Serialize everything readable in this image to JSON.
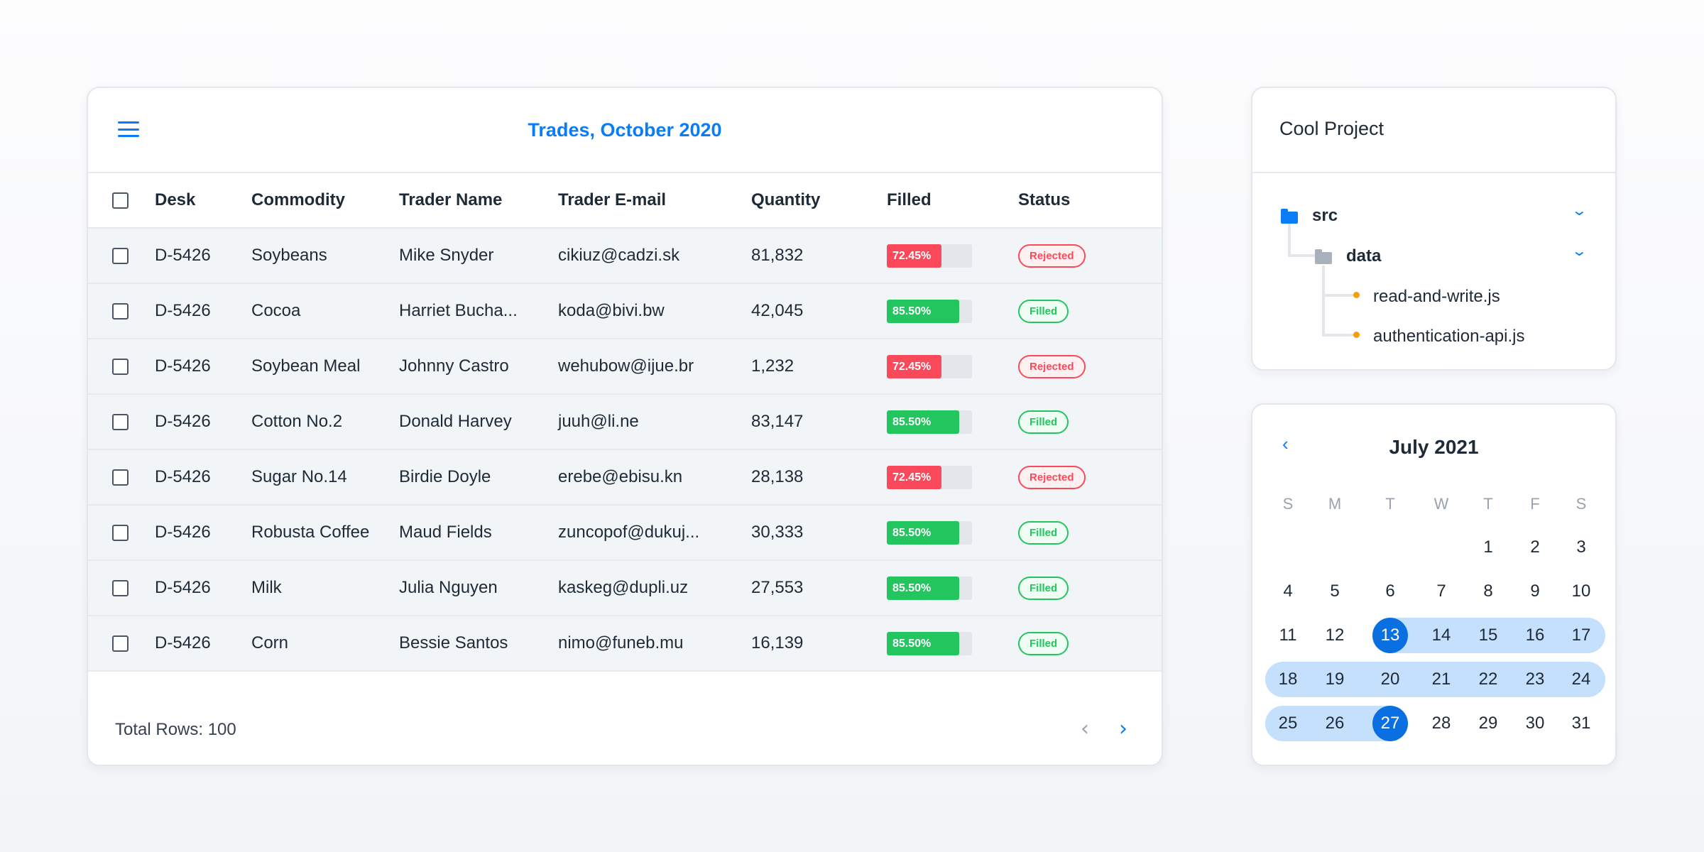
{
  "colors": {
    "accent": "#0a7cf5",
    "rejected": "#f9495b",
    "filled": "#22c55e",
    "range": "#c4e0fd",
    "selected": "#0a6fe0",
    "file_dot": "#f59e0b"
  },
  "trades": {
    "title": "Trades, October 2020",
    "columns": [
      "Desk",
      "Commodity",
      "Trader Name",
      "Trader E-mail",
      "Quantity",
      "Filled",
      "Status"
    ],
    "rows": [
      {
        "desk": "D-5426",
        "commodity": "Soybeans",
        "trader": "Mike Snyder",
        "email": "cikiuz@cadzi.sk",
        "quantity": "81,832",
        "filled": 72.45,
        "filled_label": "72.45%",
        "status": "Rejected"
      },
      {
        "desk": "D-5426",
        "commodity": "Cocoa",
        "trader": "Harriet Bucha...",
        "email": "koda@bivi.bw",
        "quantity": "42,045",
        "filled": 85.5,
        "filled_label": "85.50%",
        "status": "Filled"
      },
      {
        "desk": "D-5426",
        "commodity": "Soybean Meal",
        "trader": "Johnny Castro",
        "email": "wehubow@ijue.br",
        "quantity": "1,232",
        "filled": 72.45,
        "filled_label": "72.45%",
        "status": "Rejected"
      },
      {
        "desk": "D-5426",
        "commodity": "Cotton No.2",
        "trader": "Donald Harvey",
        "email": "juuh@li.ne",
        "quantity": "83,147",
        "filled": 85.5,
        "filled_label": "85.50%",
        "status": "Filled"
      },
      {
        "desk": "D-5426",
        "commodity": "Sugar No.14",
        "trader": "Birdie Doyle",
        "email": "erebe@ebisu.kn",
        "quantity": "28,138",
        "filled": 72.45,
        "filled_label": "72.45%",
        "status": "Rejected"
      },
      {
        "desk": "D-5426",
        "commodity": "Robusta Coffee",
        "trader": "Maud Fields",
        "email": "zuncopof@dukuj...",
        "quantity": "30,333",
        "filled": 85.5,
        "filled_label": "85.50%",
        "status": "Filled"
      },
      {
        "desk": "D-5426",
        "commodity": "Milk",
        "trader": "Julia Nguyen",
        "email": "kaskeg@dupli.uz",
        "quantity": "27,553",
        "filled": 85.5,
        "filled_label": "85.50%",
        "status": "Filled"
      },
      {
        "desk": "D-5426",
        "commodity": "Corn",
        "trader": "Bessie Santos",
        "email": "nimo@funeb.mu",
        "quantity": "16,139",
        "filled": 85.5,
        "filled_label": "85.50%",
        "status": "Filled"
      }
    ],
    "total_rows": "Total Rows: 100",
    "prev_icon": "‹",
    "next_icon": "›"
  },
  "project": {
    "title": "Cool Project",
    "tree": {
      "root": "src",
      "folder": "data",
      "files": [
        "read-and-write.js",
        "authentication-api.js"
      ]
    },
    "chevron": "⌄"
  },
  "calendar": {
    "title": "July 2021",
    "prev_icon": "‹",
    "weekdays": [
      "S",
      "M",
      "T",
      "W",
      "T",
      "F",
      "S"
    ],
    "first_weekday": 4,
    "days_in_month": 31,
    "range_start": 13,
    "range_end": 27
  }
}
